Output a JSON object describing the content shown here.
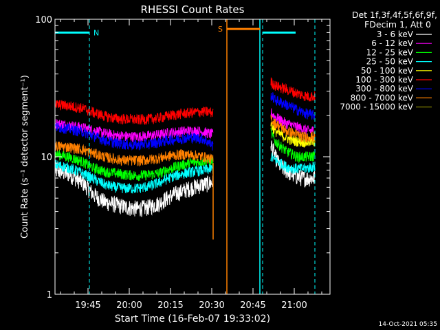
{
  "chart_data": {
    "type": "line",
    "title": "RHESSI Count Rates",
    "xlabel": "Start Time (16-Feb-07 19:33:02)",
    "ylabel": "Count Rate (s⁻¹ detector segment⁻¹)",
    "yscale": "log",
    "ylim": [
      1,
      100
    ],
    "xlim_minutes_after_1933": [
      0,
      100
    ],
    "y_ticks": [
      {
        "value": 1,
        "label": "1"
      },
      {
        "value": 10,
        "label": "10"
      },
      {
        "value": 100,
        "label": "100"
      }
    ],
    "x_ticks": [
      {
        "t": 12,
        "label": "19:45"
      },
      {
        "t": 27,
        "label": "20:00"
      },
      {
        "t": 42,
        "label": "20:15"
      },
      {
        "t": 57,
        "label": "20:30"
      },
      {
        "t": 72,
        "label": "20:45"
      },
      {
        "t": 87,
        "label": "21:00"
      }
    ],
    "legend": {
      "header_line1": "Det 1f,3f,4f,5f,6f,9f,",
      "header_line2": "FDecim 1, Att 0",
      "position": "top-right outside"
    },
    "series": [
      {
        "name": "3 - 6 keV",
        "color": "#ffffff",
        "segment1": {
          "t": [
            0,
            5,
            10,
            14,
            18,
            22,
            26,
            30,
            34,
            38,
            42,
            46,
            50,
            54,
            57.5
          ],
          "y": [
            8.0,
            7.5,
            6.5,
            5.3,
            4.7,
            4.5,
            4.3,
            4.2,
            4.3,
            4.6,
            5.2,
            5.6,
            6.0,
            6.3,
            6.5
          ]
        },
        "segment2": {
          "t": [
            78.5,
            80,
            82,
            84,
            86,
            88,
            90,
            92,
            94.5
          ],
          "y": [
            12.5,
            10.0,
            8.5,
            8.0,
            7.5,
            7.2,
            7.0,
            7.0,
            7.0
          ]
        }
      },
      {
        "name": "6 - 12 keV",
        "color": "#ff00ff",
        "segment1": {
          "t": [
            0,
            5,
            10,
            14,
            18,
            22,
            26,
            30,
            34,
            38,
            42,
            46,
            50,
            54,
            57.5
          ],
          "y": [
            17.5,
            17.0,
            16.3,
            15.6,
            14.8,
            14.3,
            14.1,
            14.0,
            14.2,
            14.5,
            15.0,
            15.3,
            15.5,
            15.2,
            14.5
          ]
        },
        "segment2": {
          "t": [
            78.5,
            80,
            82,
            84,
            86,
            88,
            90,
            92,
            94.5
          ],
          "y": [
            21.0,
            19.5,
            18.5,
            17.5,
            17.0,
            16.5,
            16.0,
            15.5,
            15.5
          ]
        }
      },
      {
        "name": "12 - 25 keV",
        "color": "#00ff00",
        "segment1": {
          "t": [
            0,
            5,
            10,
            14,
            18,
            22,
            26,
            30,
            34,
            38,
            42,
            46,
            50,
            54,
            57.5
          ],
          "y": [
            10.5,
            10.0,
            9.2,
            8.3,
            7.8,
            7.6,
            7.4,
            7.3,
            7.4,
            7.6,
            8.2,
            8.7,
            9.1,
            9.3,
            9.3
          ]
        },
        "segment2": {
          "t": [
            78.5,
            80,
            82,
            84,
            86,
            88,
            90,
            92,
            94.5
          ],
          "y": [
            15.0,
            13.0,
            12.0,
            11.0,
            10.5,
            10.0,
            10.0,
            10.0,
            10.2
          ]
        }
      },
      {
        "name": "25 - 50 keV",
        "color": "#00ffff",
        "segment1": {
          "t": [
            0,
            5,
            10,
            14,
            18,
            22,
            26,
            30,
            34,
            38,
            42,
            46,
            50,
            54,
            57.5
          ],
          "y": [
            8.8,
            8.3,
            7.6,
            6.9,
            6.3,
            6.0,
            5.9,
            5.9,
            6.1,
            6.5,
            7.1,
            7.5,
            7.8,
            8.0,
            8.2
          ]
        },
        "segment2": {
          "t": [
            78.5,
            80,
            82,
            84,
            86,
            88,
            90,
            92,
            94.5
          ],
          "y": [
            10.0,
            9.5,
            9.0,
            8.5,
            8.3,
            8.2,
            8.2,
            8.3,
            8.5
          ]
        }
      },
      {
        "name": "50 - 100 keV",
        "color": "#ffff00",
        "segment1": {
          "t": [
            57.5
          ],
          "y": [
            8.0
          ]
        },
        "segment2": {
          "t": [
            78.5,
            80,
            82,
            84,
            86,
            88,
            90,
            92,
            94.5
          ],
          "y": [
            17.0,
            15.5,
            14.5,
            13.8,
            13.2,
            13.0,
            12.8,
            12.8,
            13.0
          ]
        }
      },
      {
        "name": "100 - 300 keV",
        "color": "#ff0000",
        "segment1": {
          "t": [
            0,
            5,
            10,
            14,
            18,
            22,
            26,
            30,
            34,
            38,
            42,
            46,
            50,
            54,
            57.5
          ],
          "y": [
            24.0,
            23.5,
            22.5,
            21.0,
            19.8,
            19.0,
            18.8,
            18.6,
            18.8,
            19.2,
            20.0,
            20.6,
            21.0,
            21.3,
            21.0
          ]
        },
        "segment2": {
          "t": [
            78.5,
            80,
            82,
            84,
            86,
            88,
            90,
            92,
            94.5
          ],
          "y": [
            35.0,
            33.0,
            32.0,
            31.0,
            30.0,
            29.0,
            28.0,
            27.5,
            27.5
          ]
        }
      },
      {
        "name": "300 - 800 keV",
        "color": "#0000ff",
        "segment1": {
          "t": [
            0,
            5,
            10,
            14,
            18,
            22,
            26,
            30,
            34,
            38,
            42,
            46,
            50,
            54,
            57.5
          ],
          "y": [
            16.5,
            16.0,
            15.2,
            14.2,
            13.2,
            12.6,
            12.3,
            12.2,
            12.4,
            12.8,
            13.3,
            13.6,
            13.8,
            13.5,
            12.0
          ]
        },
        "segment2": {
          "t": [
            78.5,
            80,
            82,
            84,
            86,
            88,
            90,
            92,
            94.5
          ],
          "y": [
            28.0,
            26.0,
            25.0,
            24.0,
            23.0,
            22.0,
            21.0,
            20.5,
            20.0
          ]
        }
      },
      {
        "name": "800 - 7000 keV",
        "color": "#ff8000",
        "segment1": {
          "t": [
            0,
            5,
            10,
            14,
            18,
            22,
            26,
            30,
            34,
            38,
            42,
            46,
            50,
            54,
            57.5
          ],
          "y": [
            12.0,
            11.8,
            11.3,
            10.6,
            10.0,
            9.6,
            9.4,
            9.4,
            9.5,
            9.8,
            10.2,
            10.4,
            10.3,
            10.0,
            9.5
          ]
        },
        "segment2": {
          "t": [
            78.5,
            80,
            82,
            84,
            86,
            88,
            90,
            92,
            94.5
          ],
          "y": [
            19.0,
            17.5,
            16.5,
            15.5,
            15.0,
            14.5,
            14.0,
            14.0,
            14.0
          ]
        }
      },
      {
        "name": "7000 - 15000 keV",
        "color": "#808000",
        "segment1": {
          "t": [
            57.5
          ],
          "y": [
            2.5
          ]
        },
        "segment2": {
          "t": [
            78.5
          ],
          "y": [
            12.0
          ]
        }
      }
    ],
    "annotations": [
      {
        "label": "N",
        "color": "#00ffff",
        "t_start": 0,
        "t_end": 12.5,
        "y": 80
      },
      {
        "label": "S",
        "color": "#ff8000",
        "t_start": 62.5,
        "t_end": 74.5,
        "y": 85
      },
      {
        "label": "",
        "color": "#00ffff",
        "t_start": 75.5,
        "t_end": 87.5,
        "y": 80
      }
    ],
    "vertical_markers": [
      {
        "t": 0,
        "color": "#00ffff",
        "style": "dashed"
      },
      {
        "t": 12.5,
        "color": "#00ffff",
        "style": "dashed"
      },
      {
        "t": 62.5,
        "color": "#ff8000",
        "style": "solid"
      },
      {
        "t": 74.5,
        "color": "#00ffff",
        "style": "solid"
      },
      {
        "t": 75.5,
        "color": "#00ffff",
        "style": "dashed"
      },
      {
        "t": 94.5,
        "color": "#00ffff",
        "style": "dashed"
      }
    ],
    "orange_drop": {
      "t": 57.5,
      "y_from": 9.0,
      "y_to": 2.5,
      "color": "#ff8000"
    },
    "footer_timestamp": "14-Oct-2021 05:35"
  }
}
